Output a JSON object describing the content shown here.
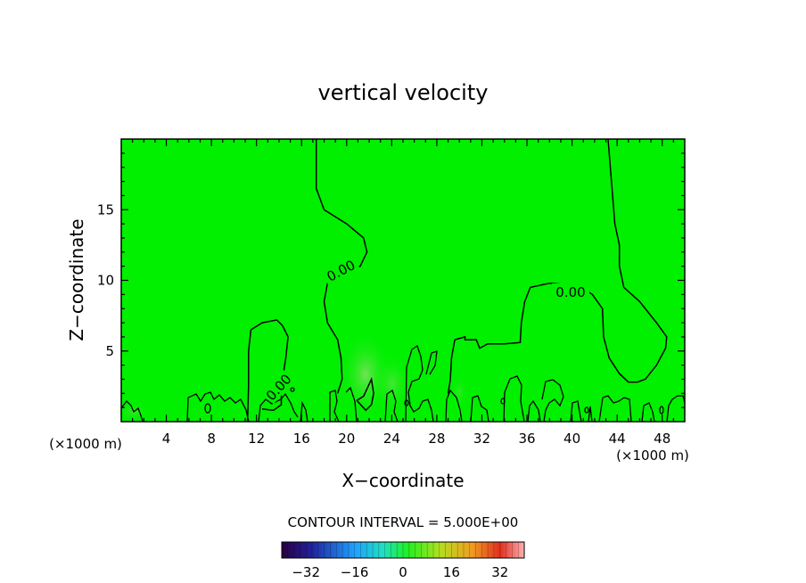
{
  "chart_data": {
    "type": "contour",
    "title": "vertical velocity",
    "xlabel": "X−coordinate",
    "ylabel": "Z−coordinate",
    "x_scale_label_left": "(×1000 m)",
    "x_scale_label_right": "(×1000 m)",
    "xlim": [
      0,
      50
    ],
    "ylim": [
      0,
      20
    ],
    "x_ticks": [
      4,
      8,
      12,
      16,
      20,
      24,
      28,
      32,
      36,
      40,
      44,
      48
    ],
    "y_ticks": [
      5,
      10,
      15
    ],
    "contour_label": "0.00",
    "contour_interval_text": "CONTOUR INTERVAL = 5.000E+00",
    "colorbar": {
      "range": [
        -40,
        40
      ],
      "ticks": [
        -32,
        -16,
        0,
        16,
        32
      ]
    },
    "field_color": "#00f000",
    "contours": [
      [
        [
          17.3,
          20
        ],
        [
          17.3,
          16.5
        ],
        [
          18,
          15
        ],
        [
          20,
          14
        ],
        [
          21.5,
          13
        ],
        [
          21.8,
          12
        ],
        [
          21.2,
          11
        ],
        [
          19.5,
          10.5
        ],
        [
          18.3,
          9.8
        ],
        [
          18,
          8.5
        ],
        [
          18.3,
          7
        ],
        [
          19.2,
          5.8
        ],
        [
          19.5,
          4.5
        ],
        [
          19.6,
          3
        ],
        [
          19.2,
          2
        ]
      ],
      [
        [
          43.2,
          20
        ],
        [
          43.5,
          17
        ],
        [
          43.8,
          14
        ],
        [
          44.2,
          12.5
        ],
        [
          44.2,
          11
        ],
        [
          44.6,
          9.5
        ],
        [
          46,
          8.5
        ],
        [
          47.5,
          7
        ],
        [
          48.4,
          6
        ],
        [
          48.3,
          5.2
        ],
        [
          47.5,
          4
        ],
        [
          46.5,
          3
        ],
        [
          45.8,
          2.8
        ],
        [
          45,
          2.8
        ],
        [
          44.2,
          3.4
        ],
        [
          43.3,
          4.5
        ],
        [
          42.8,
          6
        ],
        [
          42.7,
          8
        ],
        [
          41.8,
          9
        ],
        [
          40.5,
          9.7
        ],
        [
          39.5,
          9.7
        ],
        [
          38,
          9.8
        ],
        [
          36.3,
          9.5
        ],
        [
          35.8,
          8.5
        ],
        [
          35.5,
          7
        ],
        [
          35.4,
          5.6
        ],
        [
          34,
          5.5
        ],
        [
          32.5,
          5.5
        ],
        [
          31.8,
          5.2
        ],
        [
          31.5,
          5.8
        ],
        [
          30.5,
          5.8
        ],
        [
          30.5,
          6
        ],
        [
          29.6,
          5.8
        ],
        [
          29.3,
          4.5
        ],
        [
          29.2,
          3
        ],
        [
          29,
          2
        ]
      ],
      [
        [
          11.2,
          0
        ],
        [
          11.3,
          2.5
        ],
        [
          11.3,
          5
        ],
        [
          11.5,
          6.5
        ],
        [
          12.5,
          7
        ],
        [
          13.8,
          7.2
        ],
        [
          14.3,
          6.8
        ],
        [
          14.8,
          6
        ],
        [
          14.6,
          4.5
        ],
        [
          14.3,
          3
        ],
        [
          14.2,
          2
        ],
        [
          14.2,
          1.2
        ],
        [
          13.5,
          0.8
        ],
        [
          12.5,
          0.9
        ]
      ],
      [
        [
          20.9,
          1.5
        ],
        [
          21.5,
          1.8
        ],
        [
          22.2,
          3
        ],
        [
          22.4,
          2
        ],
        [
          22.2,
          1.2
        ],
        [
          21.7,
          0.8
        ],
        [
          20.9,
          1.5
        ]
      ]
    ]
  }
}
